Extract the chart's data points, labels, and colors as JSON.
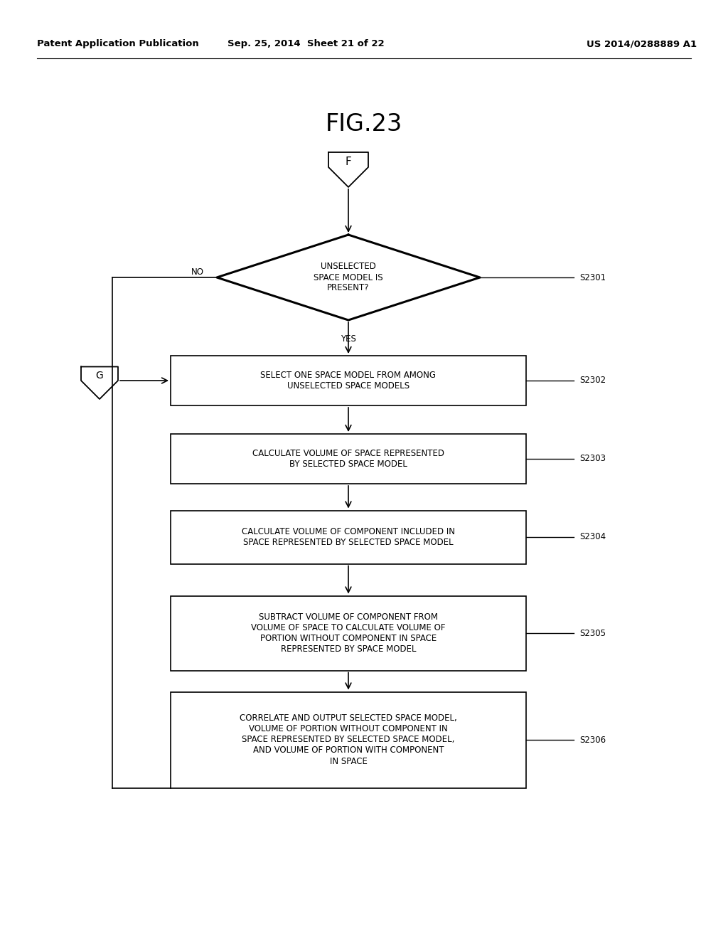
{
  "title": "FIG.23",
  "header_left": "Patent Application Publication",
  "header_center": "Sep. 25, 2014  Sheet 21 of 22",
  "header_right": "US 2014/0288889 A1",
  "bg_color": "#ffffff",
  "connector_top": "F",
  "connector_bottom": "G",
  "diamond_text": "UNSELECTED\nSPACE MODEL IS\nPRESENT?",
  "diamond_label": "S2301",
  "diamond_yes": "YES",
  "diamond_no": "NO",
  "boxes": [
    {
      "text": "SELECT ONE SPACE MODEL FROM AMONG\nUNSELECTED SPACE MODELS",
      "label": "S2302"
    },
    {
      "text": "CALCULATE VOLUME OF SPACE REPRESENTED\nBY SELECTED SPACE MODEL",
      "label": "S2303"
    },
    {
      "text": "CALCULATE VOLUME OF COMPONENT INCLUDED IN\nSPACE REPRESENTED BY SELECTED SPACE MODEL",
      "label": "S2304"
    },
    {
      "text": "SUBTRACT VOLUME OF COMPONENT FROM\nVOLUME OF SPACE TO CALCULATE VOLUME OF\nPORTION WITHOUT COMPONENT IN SPACE\nREPRESENTED BY SPACE MODEL",
      "label": "S2305"
    },
    {
      "text": "CORRELATE AND OUTPUT SELECTED SPACE MODEL,\nVOLUME OF PORTION WITHOUT COMPONENT IN\nSPACE REPRESENTED BY SELECTED SPACE MODEL,\nAND VOLUME OF PORTION WITH COMPONENT\nIN SPACE",
      "label": "S2306"
    }
  ]
}
